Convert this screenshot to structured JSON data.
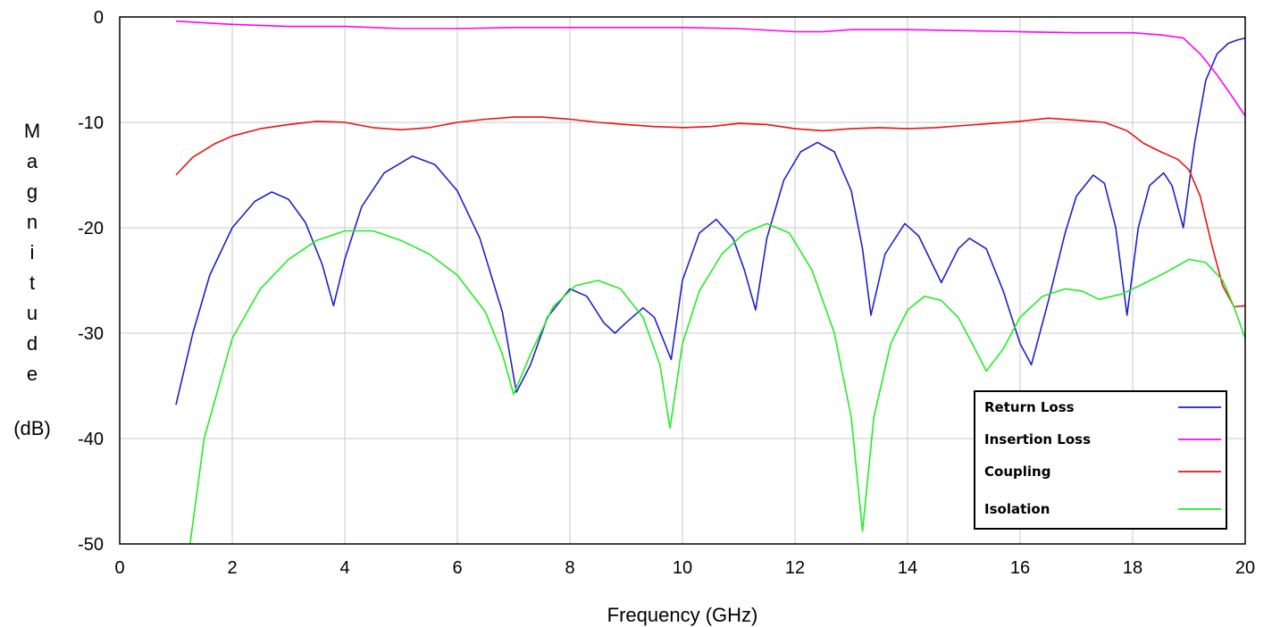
{
  "chart_data": {
    "type": "line",
    "xlabel": "Frequency (GHz)",
    "ylabel_letters": [
      "M",
      "a",
      "g",
      "n",
      "i",
      "t",
      "u",
      "d",
      "e"
    ],
    "ylabel_unit": "(dB)",
    "xlim": [
      0,
      20
    ],
    "ylim": [
      -50,
      0
    ],
    "xticks": [
      0,
      2,
      4,
      6,
      8,
      10,
      12,
      14,
      16,
      18,
      20
    ],
    "yticks": [
      0,
      -10,
      -20,
      -30,
      -40,
      -50
    ],
    "xtick_labels": [
      "0",
      "2",
      "4",
      "6",
      "8",
      "10",
      "12",
      "14",
      "16",
      "18",
      "20"
    ],
    "ytick_labels": [
      "0",
      "-10",
      "-20",
      "-30",
      "-40",
      "-50"
    ],
    "grid": true,
    "legend_position": "bottom-right",
    "series": [
      {
        "name": "Return Loss",
        "color": "#2020cc",
        "x": [
          1.0,
          1.3,
          1.6,
          2.0,
          2.4,
          2.7,
          3.0,
          3.3,
          3.6,
          3.8,
          4.0,
          4.3,
          4.7,
          5.2,
          5.6,
          6.0,
          6.4,
          6.8,
          7.05,
          7.3,
          7.6,
          8.0,
          8.3,
          8.6,
          8.8,
          9.0,
          9.3,
          9.5,
          9.8,
          10.0,
          10.3,
          10.6,
          10.9,
          11.1,
          11.3,
          11.5,
          11.8,
          12.1,
          12.4,
          12.7,
          13.0,
          13.2,
          13.35,
          13.6,
          13.95,
          14.2,
          14.4,
          14.6,
          14.9,
          15.1,
          15.4,
          15.7,
          16.0,
          16.2,
          16.5,
          16.8,
          17.0,
          17.3,
          17.5,
          17.7,
          17.9,
          18.1,
          18.3,
          18.55,
          18.7,
          18.9,
          19.1,
          19.3,
          19.5,
          19.7,
          19.85,
          20.0
        ],
        "y": [
          -36.8,
          -30.0,
          -24.5,
          -20.0,
          -17.5,
          -16.6,
          -17.3,
          -19.5,
          -23.5,
          -27.4,
          -23.0,
          -18.0,
          -14.8,
          -13.2,
          -14.0,
          -16.5,
          -21.0,
          -28.0,
          -35.6,
          -33.0,
          -28.5,
          -25.8,
          -26.5,
          -29.0,
          -30.0,
          -29.0,
          -27.6,
          -28.5,
          -32.5,
          -25.0,
          -20.5,
          -19.2,
          -21.0,
          -24.0,
          -27.8,
          -21.0,
          -15.5,
          -12.8,
          -11.9,
          -12.8,
          -16.5,
          -22.0,
          -28.3,
          -22.5,
          -19.6,
          -20.8,
          -23.0,
          -25.2,
          -22.0,
          -21.0,
          -22.0,
          -26.0,
          -31.0,
          -33.0,
          -27.0,
          -20.5,
          -17.0,
          -15.0,
          -15.8,
          -20.0,
          -28.3,
          -20.0,
          -16.0,
          -14.8,
          -16.0,
          -20.0,
          -12.0,
          -6.0,
          -3.5,
          -2.5,
          -2.2,
          -2.0
        ]
      },
      {
        "name": "Insertion Loss",
        "color": "#ff00ff",
        "x": [
          1.0,
          2.0,
          3.0,
          4.0,
          5.0,
          6.0,
          7.0,
          8.0,
          9.0,
          10.0,
          11.0,
          12.0,
          12.5,
          13.0,
          14.0,
          15.0,
          16.0,
          17.0,
          18.0,
          18.5,
          18.9,
          19.2,
          19.5,
          19.8,
          20.0
        ],
        "y": [
          -0.4,
          -0.7,
          -0.9,
          -0.9,
          -1.1,
          -1.1,
          -1.0,
          -1.0,
          -1.0,
          -1.0,
          -1.1,
          -1.4,
          -1.4,
          -1.2,
          -1.2,
          -1.3,
          -1.4,
          -1.5,
          -1.5,
          -1.7,
          -2.0,
          -3.5,
          -5.5,
          -7.8,
          -9.4
        ]
      },
      {
        "name": "Coupling",
        "color": "#ee1111",
        "x": [
          1.0,
          1.3,
          1.7,
          2.0,
          2.5,
          3.0,
          3.5,
          4.0,
          4.5,
          5.0,
          5.5,
          6.0,
          6.5,
          7.0,
          7.5,
          8.0,
          8.5,
          9.0,
          9.5,
          10.0,
          10.5,
          11.0,
          11.5,
          12.0,
          12.5,
          13.0,
          13.5,
          14.0,
          14.5,
          15.0,
          15.5,
          16.0,
          16.5,
          17.0,
          17.5,
          17.9,
          18.2,
          18.5,
          18.8,
          19.0,
          19.2,
          19.4,
          19.6,
          19.8,
          20.0
        ],
        "y": [
          -15.0,
          -13.3,
          -12.0,
          -11.3,
          -10.6,
          -10.2,
          -9.9,
          -10.0,
          -10.5,
          -10.7,
          -10.5,
          -10.0,
          -9.7,
          -9.5,
          -9.5,
          -9.7,
          -10.0,
          -10.2,
          -10.4,
          -10.5,
          -10.4,
          -10.1,
          -10.2,
          -10.6,
          -10.8,
          -10.6,
          -10.5,
          -10.6,
          -10.5,
          -10.3,
          -10.1,
          -9.9,
          -9.6,
          -9.8,
          -10.0,
          -10.8,
          -12.0,
          -12.8,
          -13.5,
          -14.5,
          -17.0,
          -21.5,
          -25.5,
          -27.5,
          -27.4
        ]
      },
      {
        "name": "Isolation",
        "color": "#22ee22",
        "x": [
          1.25,
          1.5,
          2.0,
          2.5,
          3.0,
          3.5,
          4.0,
          4.5,
          5.0,
          5.5,
          6.0,
          6.5,
          6.8,
          7.0,
          7.3,
          7.7,
          8.1,
          8.5,
          8.9,
          9.3,
          9.6,
          9.78,
          10.0,
          10.3,
          10.7,
          11.1,
          11.5,
          11.9,
          12.3,
          12.7,
          13.0,
          13.2,
          13.4,
          13.7,
          14.0,
          14.3,
          14.6,
          14.9,
          15.2,
          15.4,
          15.7,
          16.0,
          16.4,
          16.8,
          17.1,
          17.4,
          17.8,
          18.2,
          18.6,
          19.0,
          19.3,
          19.6,
          19.8,
          20.0
        ],
        "y": [
          -50.0,
          -40.0,
          -30.5,
          -25.8,
          -23.0,
          -21.2,
          -20.3,
          -20.3,
          -21.2,
          -22.5,
          -24.5,
          -28.0,
          -32.0,
          -35.8,
          -32.0,
          -27.5,
          -25.5,
          -25.0,
          -25.8,
          -28.5,
          -33.0,
          -39.0,
          -31.0,
          -26.0,
          -22.5,
          -20.5,
          -19.6,
          -20.5,
          -24.0,
          -30.0,
          -38.0,
          -48.8,
          -38.0,
          -31.0,
          -27.8,
          -26.5,
          -26.9,
          -28.5,
          -31.5,
          -33.6,
          -31.5,
          -28.5,
          -26.5,
          -25.8,
          -26.0,
          -26.8,
          -26.3,
          -25.3,
          -24.2,
          -23.0,
          -23.3,
          -25.0,
          -27.5,
          -30.5
        ]
      }
    ]
  }
}
